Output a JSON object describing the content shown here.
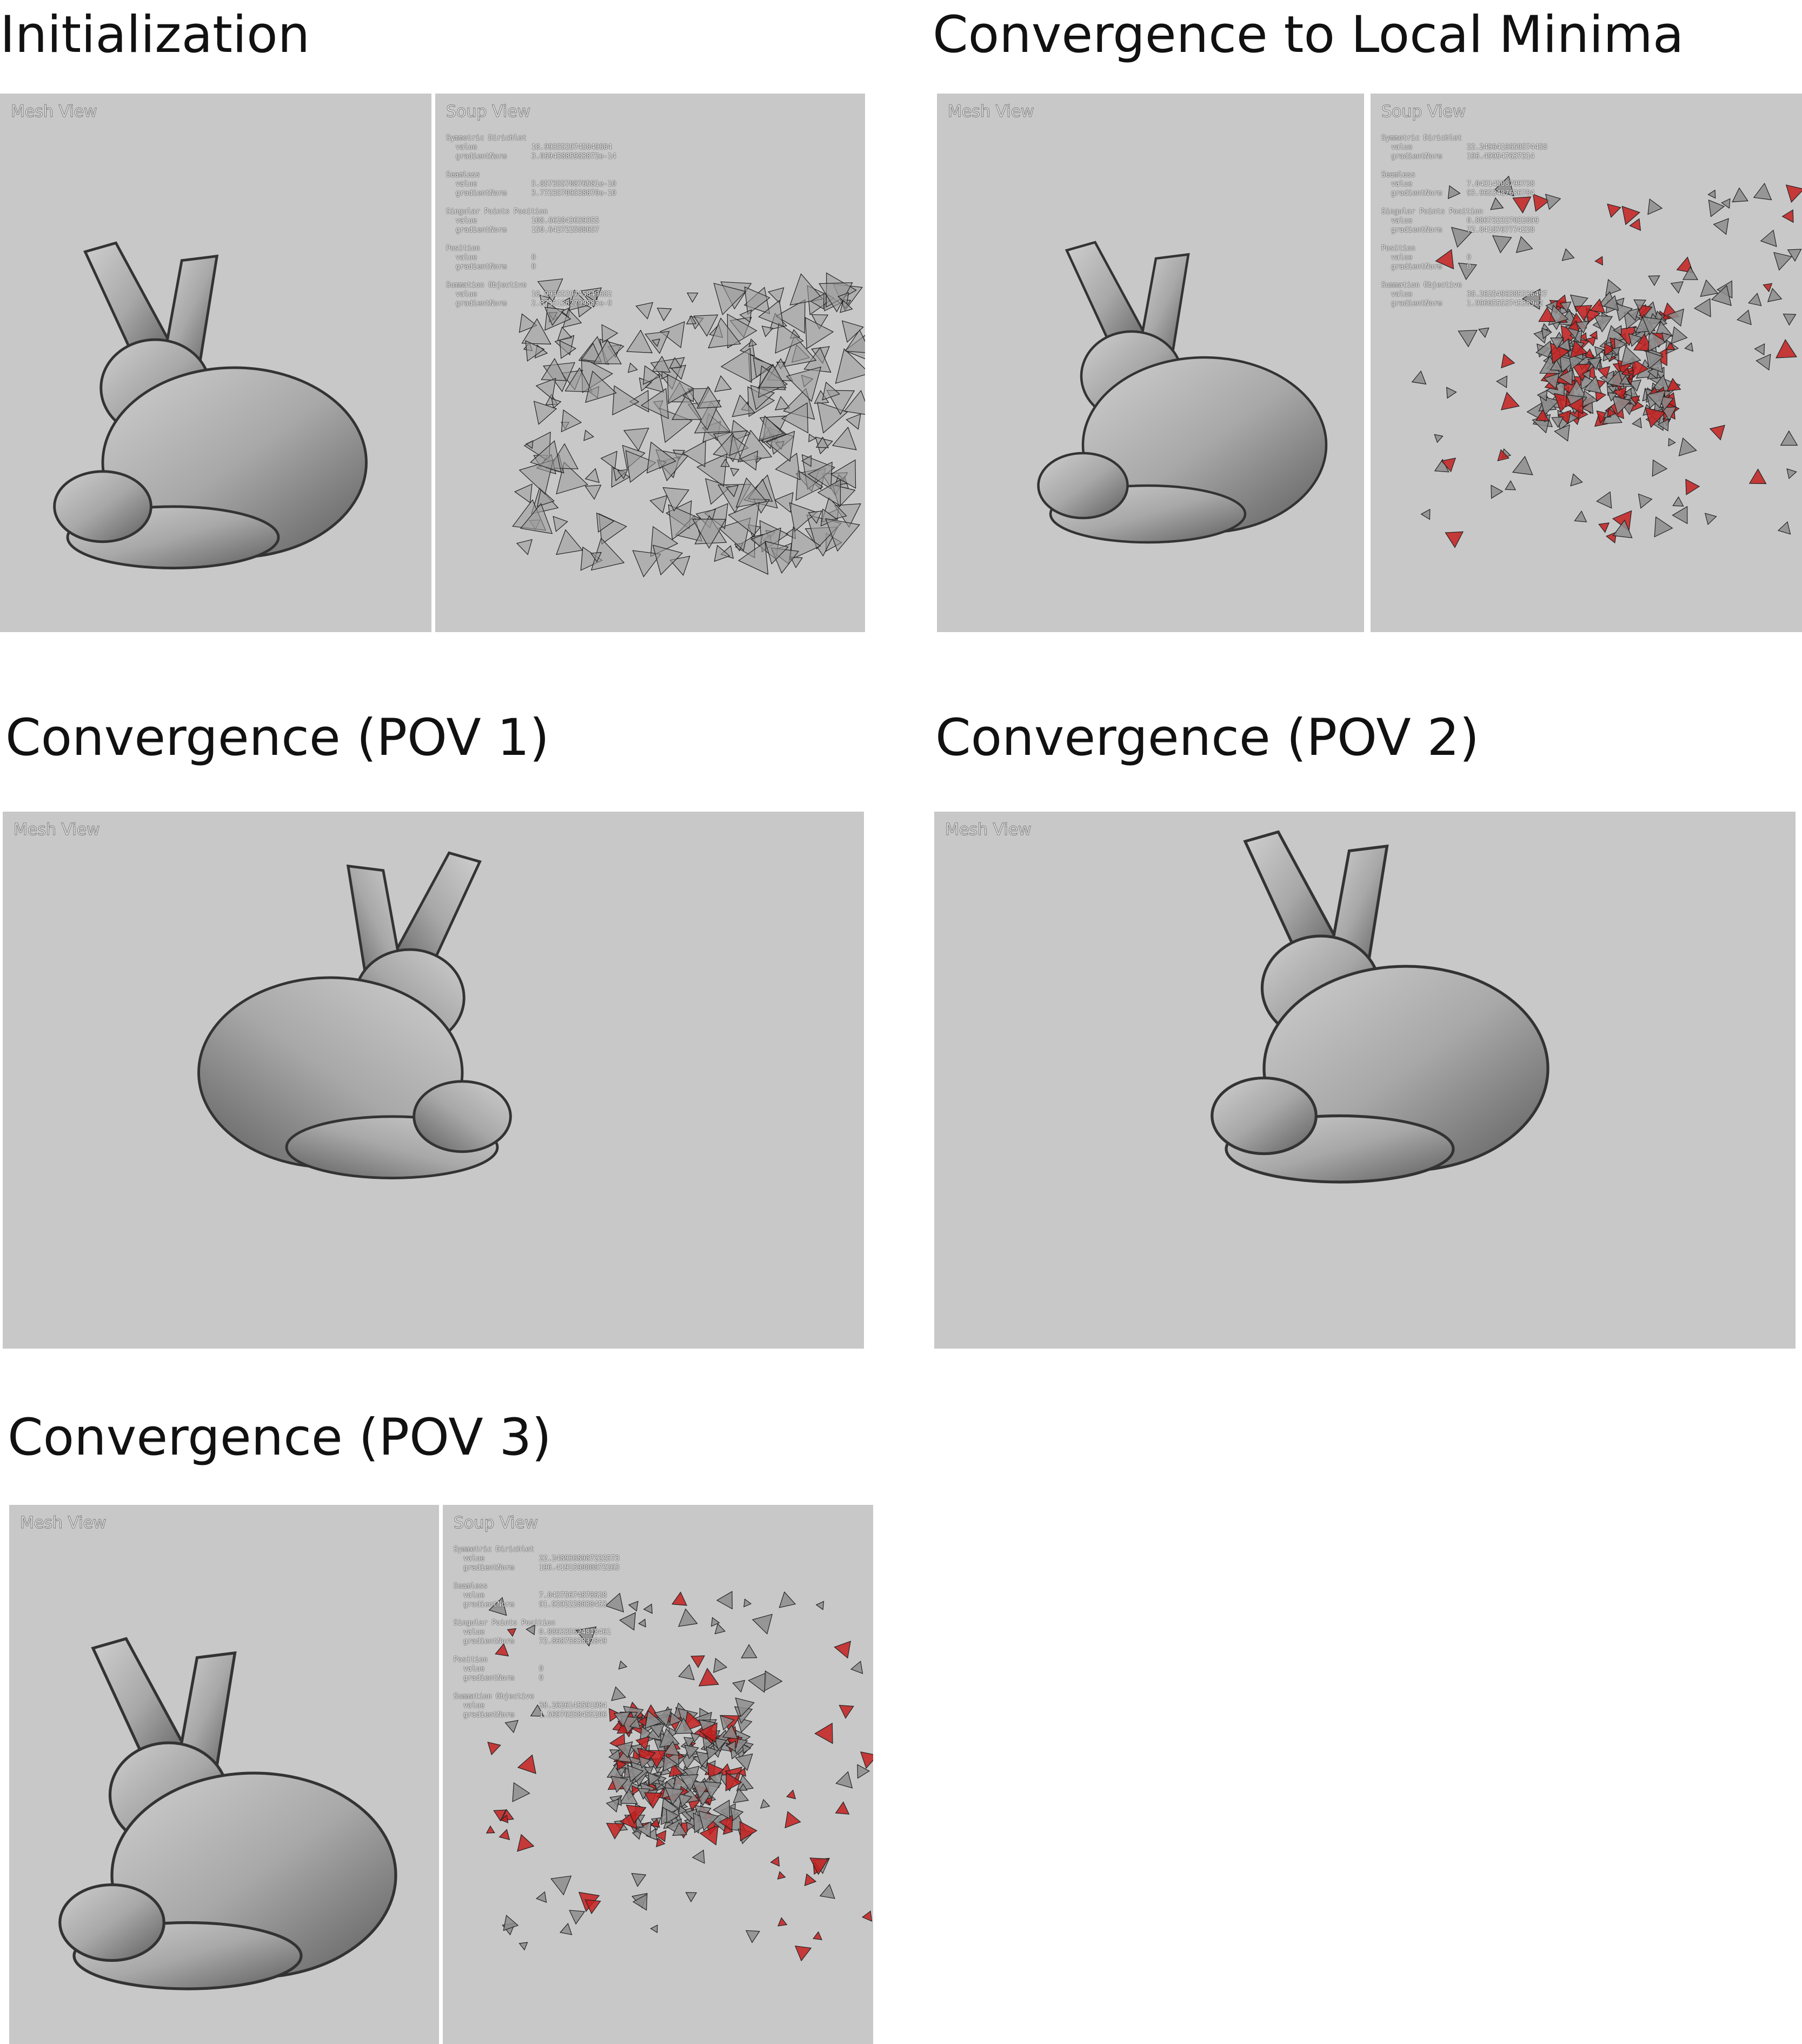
{
  "panels": [
    {
      "title": "Initialization",
      "views": [
        {
          "label": "Mesh View"
        },
        {
          "label": "Soup View",
          "stats": [
            {
              "name": "Symmetric Dirichlet",
              "rows": [
                {
                  "key": "value",
                  "value": "18.9935529745849684"
                },
                {
                  "key": "gradientNorm",
                  "value": "3.06945885983872e-14"
                }
              ]
            },
            {
              "name": "Seamless",
              "rows": [
                {
                  "key": "value",
                  "value": "5.85735570876581e-10"
                },
                {
                  "key": "gradientNorm",
                  "value": "3.77235709538870e-10"
                }
              ]
            },
            {
              "name": "Singular Points Position",
              "rows": [
                {
                  "key": "value",
                  "value": "108.662843639355"
                },
                {
                  "key": "gradientNorm",
                  "value": "150.642722588657"
                }
              ]
            },
            {
              "name": "Position",
              "rows": [
                {
                  "key": "value",
                  "value": "0"
                },
                {
                  "key": "gradientNorm",
                  "value": "0"
                }
              ]
            },
            {
              "name": "Summation Objective",
              "rows": [
                {
                  "key": "value",
                  "value": "18.9935529745849682"
                },
                {
                  "key": "gradientNorm",
                  "value": "2.87351362799885e-9"
                }
              ]
            }
          ]
        }
      ]
    },
    {
      "title": "Convergence to Local Minima",
      "views": [
        {
          "label": "Mesh View"
        },
        {
          "label": "Soup View",
          "stats": [
            {
              "name": "Symmetric Dirichlet",
              "rows": [
                {
                  "key": "value",
                  "value": "22.2496419659574458"
                },
                {
                  "key": "gradientNorm",
                  "value": "196.499547637314"
                }
              ]
            },
            {
              "name": "Seamless",
              "rows": [
                {
                  "key": "value",
                  "value": "7.04314508799738"
                },
                {
                  "key": "gradientNorm",
                  "value": "93.9653487636784"
                }
              ]
            },
            {
              "name": "Singular Points Position",
              "rows": [
                {
                  "key": "value",
                  "value": "0.886732327032899"
                },
                {
                  "key": "gradientNorm",
                  "value": "72.8418767774228"
                }
              ]
            },
            {
              "name": "Position",
              "rows": [
                {
                  "key": "value",
                  "value": "0"
                },
                {
                  "key": "gradientNorm",
                  "value": "0"
                }
              ]
            },
            {
              "name": "Summation Objective",
              "rows": [
                {
                  "key": "value",
                  "value": "38.2625496385336497"
                },
                {
                  "key": "gradientNorm",
                  "value": "1.99605553745389e2"
                }
              ]
            }
          ]
        }
      ]
    },
    {
      "title": "Convergence (POV 1)",
      "views": [
        {
          "label": "Mesh View"
        }
      ]
    },
    {
      "title": "Convergence (POV 2)",
      "views": [
        {
          "label": "Mesh View"
        }
      ]
    },
    {
      "title": "Convergence (POV 3)",
      "views": [
        {
          "label": "Mesh View"
        },
        {
          "label": "Soup View",
          "stats": [
            {
              "name": "Symmetric Dirichlet",
              "rows": [
                {
                  "key": "value",
                  "value": "22.2489368987222573"
                },
                {
                  "key": "gradientNorm",
                  "value": "196.419159080872263"
                }
              ]
            },
            {
              "name": "Seamless",
              "rows": [
                {
                  "key": "value",
                  "value": "7.04375674878628"
                },
                {
                  "key": "gradientNorm",
                  "value": "91.9292228038453"
                }
              ]
            },
            {
              "name": "Singular Points Position",
              "rows": [
                {
                  "key": "value",
                  "value": "0.886335624818461"
                },
                {
                  "key": "gradientNorm",
                  "value": "72.8687583832849"
                }
              ]
            },
            {
              "name": "Position",
              "rows": [
                {
                  "key": "value",
                  "value": "0"
                },
                {
                  "key": "gradientNorm",
                  "value": "0"
                }
              ]
            },
            {
              "name": "Summation Objective",
              "rows": [
                {
                  "key": "value",
                  "value": "38.2626145591984"
                },
                {
                  "key": "gradientNorm",
                  "value": "1.56976358455206"
                }
              ]
            }
          ]
        }
      ]
    }
  ]
}
